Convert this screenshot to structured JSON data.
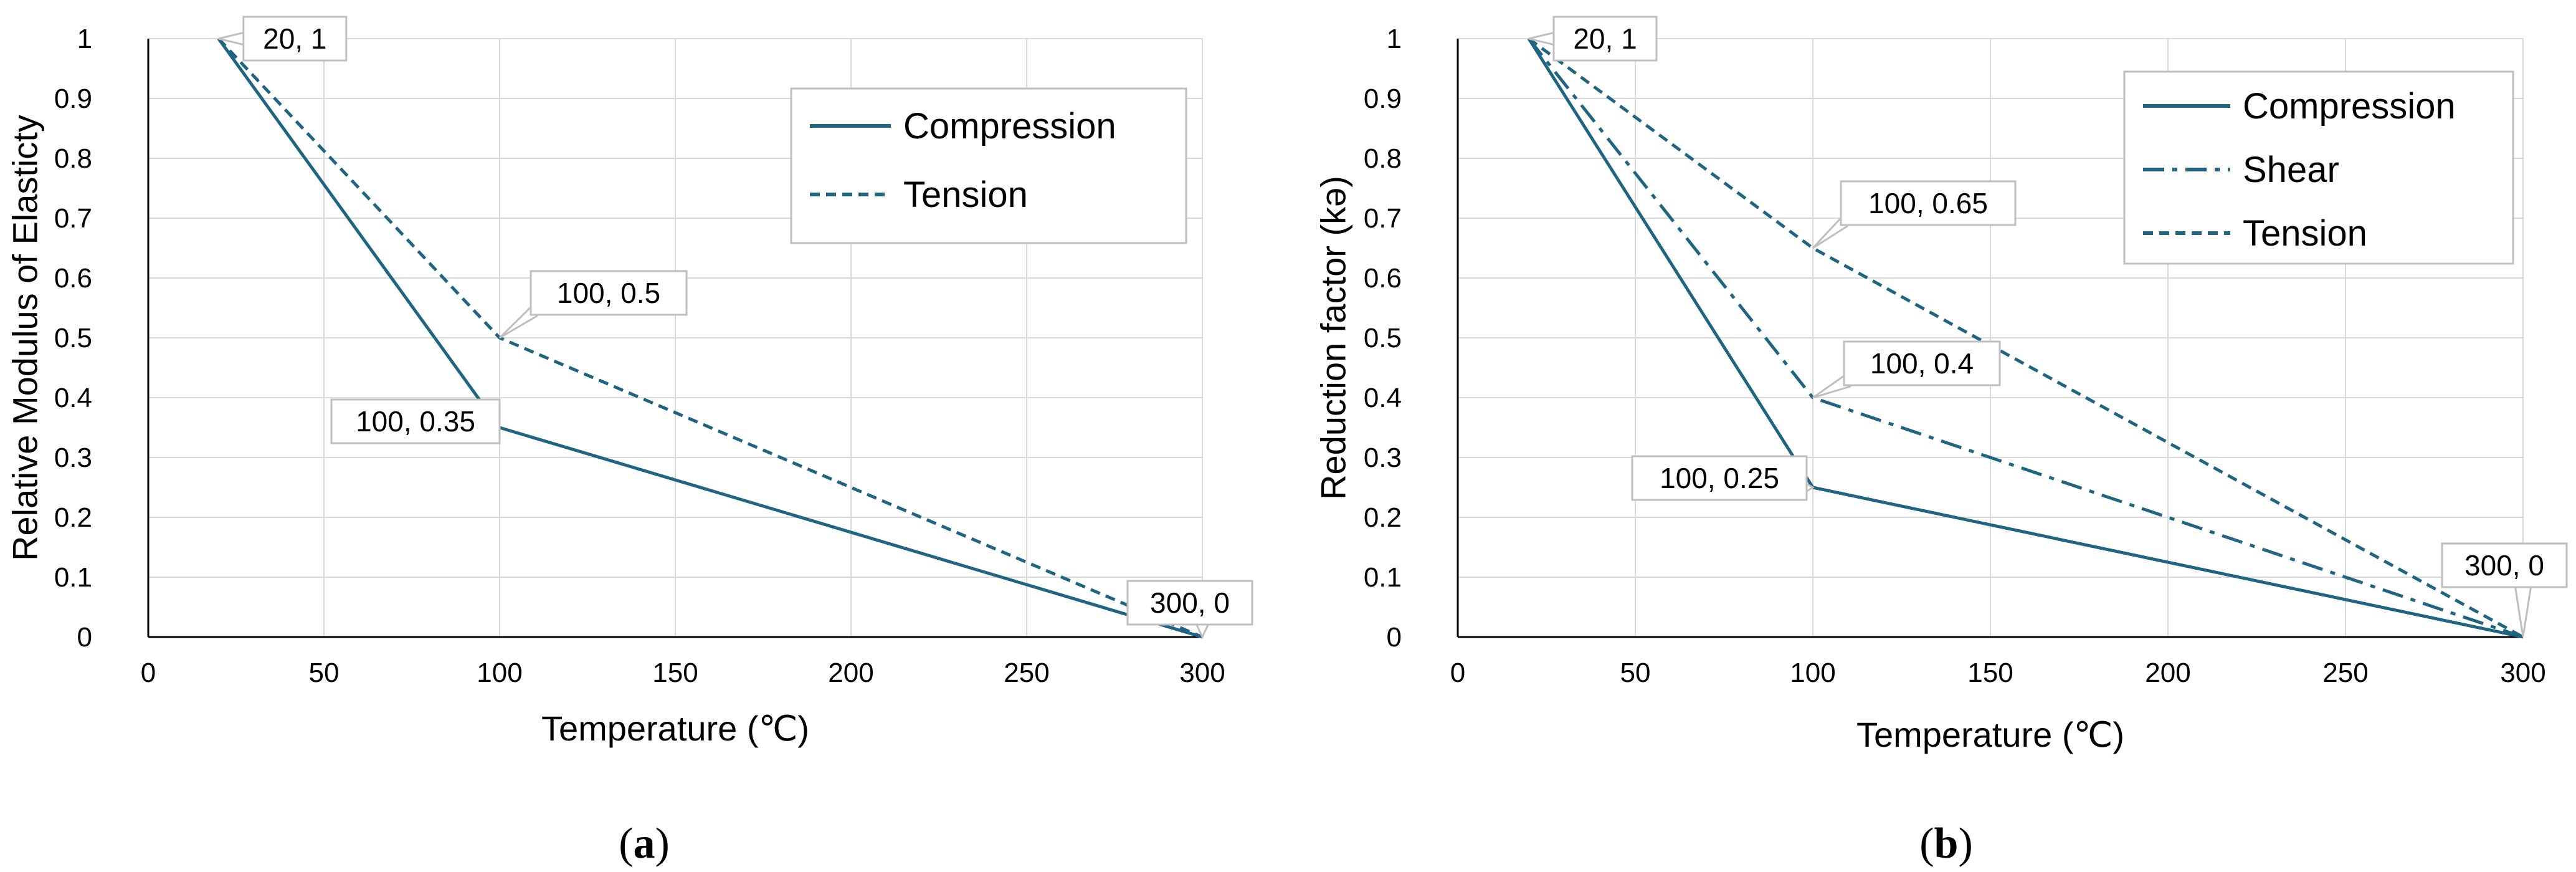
{
  "chart_data": [
    {
      "panel": "a",
      "panel_label": {
        "open": "(",
        "letter": "a",
        "close": ")"
      },
      "type": "line",
      "xlabel": "Temperature (℃)",
      "ylabel": "Relative Modulus of Elasticty",
      "xlim": [
        0,
        300
      ],
      "ylim": [
        0,
        1
      ],
      "x_ticks": [
        "0",
        "50",
        "100",
        "150",
        "200",
        "250",
        "300"
      ],
      "y_ticks": [
        "0",
        "0.1",
        "0.2",
        "0.3",
        "0.4",
        "0.5",
        "0.6",
        "0.7",
        "0.8",
        "0.9",
        "1"
      ],
      "grid": true,
      "legend_position": "top-right",
      "series": [
        {
          "name": "Compression",
          "style": "solid",
          "x": [
            20,
            100,
            300
          ],
          "y": [
            1,
            0.35,
            0
          ]
        },
        {
          "name": "Tension",
          "style": "dashed",
          "x": [
            20,
            100,
            300
          ],
          "y": [
            1,
            0.5,
            0
          ]
        }
      ],
      "annotations": [
        {
          "text": "20, 1",
          "x": 20,
          "y": 1,
          "placement": "upper-right"
        },
        {
          "text": "100, 0.5",
          "x": 100,
          "y": 0.5,
          "placement": "upper-right"
        },
        {
          "text": "100, 0.35",
          "x": 100,
          "y": 0.35,
          "placement": "left"
        },
        {
          "text": "300, 0",
          "x": 300,
          "y": 0,
          "placement": "upper-left"
        }
      ]
    },
    {
      "panel": "b",
      "panel_label": {
        "open": "(",
        "letter": "b",
        "close": ")"
      },
      "type": "line",
      "xlabel": "Temperature (℃)",
      "ylabel": "Reduction factor (kə)",
      "xlim": [
        0,
        300
      ],
      "ylim": [
        0,
        1
      ],
      "x_ticks": [
        "0",
        "50",
        "100",
        "150",
        "200",
        "250",
        "300"
      ],
      "y_ticks": [
        "0",
        "0.1",
        "0.2",
        "0.3",
        "0.4",
        "0.5",
        "0.6",
        "0.7",
        "0.8",
        "0.9",
        "1"
      ],
      "grid": true,
      "legend_position": "top-right",
      "series": [
        {
          "name": "Compression",
          "style": "solid",
          "x": [
            20,
            100,
            300
          ],
          "y": [
            1,
            0.25,
            0
          ]
        },
        {
          "name": "Shear",
          "style": "dash-dot",
          "x": [
            20,
            100,
            300
          ],
          "y": [
            1,
            0.4,
            0
          ]
        },
        {
          "name": "Tension",
          "style": "dashed",
          "x": [
            20,
            100,
            300
          ],
          "y": [
            1,
            0.65,
            0
          ]
        }
      ],
      "annotations": [
        {
          "text": "20, 1",
          "x": 20,
          "y": 1,
          "placement": "upper-right"
        },
        {
          "text": "100, 0.65",
          "x": 100,
          "y": 0.65,
          "placement": "upper-right"
        },
        {
          "text": "100, 0.4",
          "x": 100,
          "y": 0.4,
          "placement": "upper-right"
        },
        {
          "text": "100, 0.25",
          "x": 100,
          "y": 0.25,
          "placement": "left"
        },
        {
          "text": "300, 0",
          "x": 300,
          "y": 0,
          "placement": "above"
        }
      ]
    }
  ],
  "colors": {
    "series_line": "#1f6480",
    "grid": "#d9d9d9",
    "axis": "#000000",
    "callout_border": "#bfbfbf",
    "legend_border": "#bfbfbf"
  }
}
